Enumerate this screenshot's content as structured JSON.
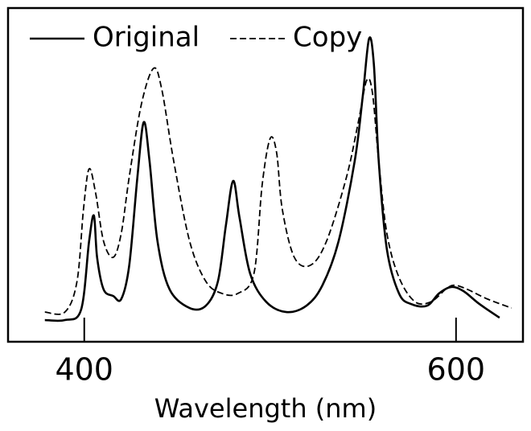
{
  "chart_data": {
    "type": "line",
    "xlabel": "Wavelength (nm)",
    "xlim": [
      359,
      636
    ],
    "xticks": [
      400,
      600
    ],
    "ylim": [
      0,
      100
    ],
    "legend": "top-left",
    "series": [
      {
        "name": "Original",
        "color": "#000000",
        "dash": "solid",
        "x": [
          378.8,
          389.6,
          398.3,
          402.6,
          405.2,
          406.9,
          410.4,
          415.6,
          419.9,
          424.2,
          428.6,
          432.0,
          435.1,
          439.4,
          445.9,
          456.7,
          465.4,
          471.9,
          476.2,
          480.1,
          483.5,
          489.2,
          497.8,
          508.7,
          519.5,
          528.1,
          536.8,
          545.5,
          549.8,
          553.2,
          555.8,
          558.4,
          562.8,
          569.3,
          575.8,
          584.4,
          590.9,
          597.4,
          603.9,
          612.6,
          623.4
        ],
        "values": [
          6.5,
          6.5,
          9.6,
          30.1,
          37.8,
          25.3,
          15.7,
          13.7,
          12.8,
          22.9,
          49.4,
          65.8,
          54.2,
          30.1,
          15.7,
          10.1,
          10.8,
          18.1,
          34.9,
          48.2,
          37.3,
          20.5,
          12.0,
          8.9,
          10.8,
          16.9,
          30.1,
          54.2,
          73.5,
          90.8,
          83.1,
          54.2,
          27.7,
          14.5,
          11.3,
          10.8,
          14.5,
          16.4,
          15.2,
          11.3,
          7.2
        ]
      },
      {
        "name": "Copy",
        "color": "#000000",
        "dash": "dashed",
        "x": [
          378.8,
          389.6,
          396.1,
          399.6,
          402.6,
          406.1,
          410.4,
          415.6,
          419.9,
          424.2,
          430.7,
          437.2,
          441.6,
          448.1,
          456.7,
          465.4,
          474.0,
          482.7,
          491.3,
          495.7,
          500.0,
          503.5,
          506.5,
          513.0,
          521.6,
          530.3,
          541.1,
          547.6,
          551.9,
          555.0,
          558.4,
          562.8,
          569.3,
          577.9,
          586.6,
          595.2,
          599.6,
          606.1,
          616.9,
          629.9
        ],
        "values": [
          8.9,
          8.9,
          18.1,
          39.8,
          51.8,
          44.6,
          30.1,
          25.3,
          32.5,
          49.4,
          71.1,
          81.9,
          75.9,
          54.2,
          30.1,
          18.1,
          14.5,
          14.5,
          20.5,
          47.0,
          60.9,
          56.6,
          39.8,
          25.3,
          22.9,
          30.1,
          49.4,
          66.3,
          78.3,
          74.7,
          54.2,
          32.5,
          19.3,
          12.0,
          12.0,
          16.1,
          16.9,
          15.7,
          12.8,
          10.1
        ]
      }
    ]
  }
}
